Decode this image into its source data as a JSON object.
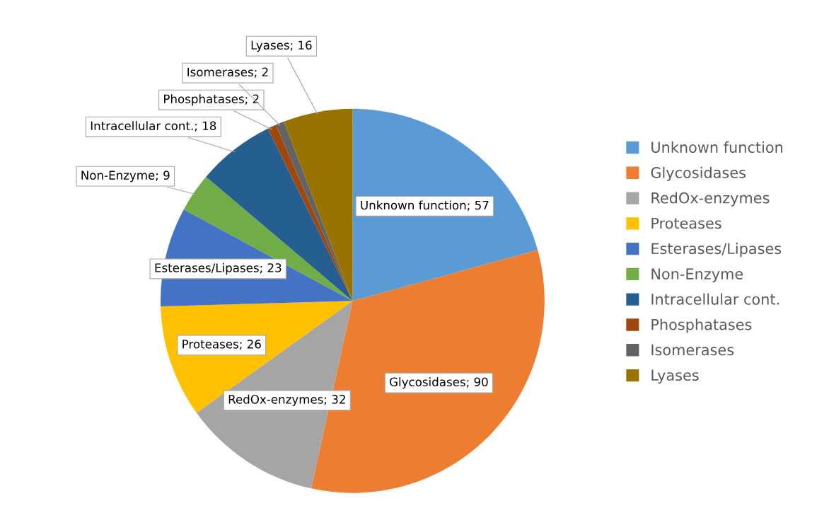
{
  "chart_data": {
    "type": "pie",
    "categories": [
      "Unknown function",
      "Glycosidases",
      "RedOx-enzymes",
      "Proteases",
      "Esterases/Lipases",
      "Non-Enzyme",
      "Intracellular cont.",
      "Phosphatases",
      "Isomerases",
      "Lyases"
    ],
    "values": [
      57,
      90,
      32,
      26,
      23,
      9,
      18,
      2,
      2,
      16
    ],
    "colors": [
      "#5b9bd5",
      "#ed7d31",
      "#a5a5a5",
      "#ffc000",
      "#4472c4",
      "#70ad47",
      "#255e91",
      "#9e480e",
      "#636363",
      "#997300"
    ],
    "value_labels": [
      "Unknown function; 57",
      "Glycosidases; 90",
      "RedOx-enzymes; 32",
      "Proteases; 26",
      "Esterases/Lipases; 23",
      "Non-Enzyme; 9",
      "Intracellular cont.; 18",
      "Phosphatases; 2",
      "Isomerases; 2",
      "Lyases; 16"
    ],
    "legend": "right"
  }
}
